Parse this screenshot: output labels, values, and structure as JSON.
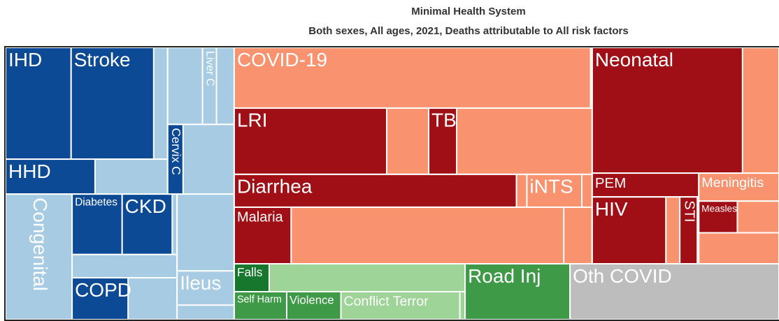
{
  "chart_data": {
    "type": "treemap",
    "title": "Minimal Health System",
    "subtitle": "Both sexes, All ages, 2021, Deaths attributable to All risk factors",
    "root": {
      "value": 4313,
      "color": "#ffffff",
      "children": [
        {
          "value": 1275,
          "color": "#a6cbe3",
          "children": [
            {
              "value": 687,
              "color": "#a6cbe3",
              "children": [
                {
                  "value": 487,
                  "color": "#a6cbe3",
                  "children": [
                    {
                      "value": 371,
                      "color": "#a6cbe3",
                      "children": [
                        {
                          "name": "IHD",
                          "value": 150,
                          "color": "#0d4a96"
                        },
                        {
                          "name": "Stroke",
                          "value": 189,
                          "color": "#0d4a96"
                        }
                      ]
                    },
                    {
                      "value": 116,
                      "color": "#a6cbe3",
                      "children": [
                        {
                          "name": "HHD",
                          "value": 64,
                          "color": "#0d4a96"
                        }
                      ]
                    }
                  ]
                },
                {
                  "value": 200,
                  "color": "#a6cbe3",
                  "children": [
                    {
                      "value": 105,
                      "color": "#a6cbe3",
                      "children": [
                        {
                          "value": 55,
                          "color": "#a6cbe3"
                        },
                        {
                          "name": "Liver C",
                          "value": 22,
                          "color": "#a6cbe3"
                        }
                      ]
                    },
                    {
                      "value": 95,
                      "color": "#a6cbe3",
                      "children": [
                        {
                          "name": "Cervix C",
                          "value": 22,
                          "color": "#0d4a96"
                        }
                      ]
                    }
                  ]
                }
              ]
            },
            {
              "value": 588,
              "color": "#a6cbe3",
              "children": [
                {
                  "name": "Congenital",
                  "value": 171,
                  "color": "#a6cbe3"
                },
                {
                  "value": 270,
                  "color": "#a6cbe3",
                  "children": [
                    {
                      "value": 130,
                      "color": "#a6cbe3",
                      "children": [
                        {
                          "name": "Diabetes",
                          "value": 62,
                          "color": "#0d4a96"
                        },
                        {
                          "name": "CKD",
                          "value": 62,
                          "color": "#0d4a96"
                        }
                      ]
                    },
                    {
                      "value": 50,
                      "color": "#a6cbe3"
                    },
                    {
                      "value": 90,
                      "color": "#a6cbe3",
                      "children": [
                        {
                          "name": "COPD",
                          "value": 48,
                          "color": "#0d4a96"
                        }
                      ]
                    }
                  ]
                },
                {
                  "value": 147,
                  "color": "#a6cbe3",
                  "children": [
                    {
                      "value": 90,
                      "color": "#a6cbe3"
                    },
                    {
                      "name": "Ileus",
                      "value": 40,
                      "color": "#a6cbe3"
                    }
                  ]
                }
              ]
            }
          ]
        },
        {
          "value": 3038,
          "color": "#ffffff",
          "children": [
            {
              "value": 2415,
              "color": "#f8926f",
              "children": [
                {
                  "value": 1587,
                  "color": "#f8926f",
                  "children": [
                    {
                      "value": 445,
                      "color": "#f8926f",
                      "children": [
                        {
                          "name": "COVID-19",
                          "value": 443,
                          "color": "#f8926f"
                        }
                      ]
                    },
                    {
                      "value": 486,
                      "color": "#f8926f",
                      "children": [
                        {
                          "name": "LRI",
                          "value": 207,
                          "color": "#a10f16"
                        },
                        {
                          "value": 57,
                          "color": "#f8926f"
                        },
                        {
                          "name": "TB",
                          "value": 38,
                          "color": "#a10f16"
                        }
                      ]
                    },
                    {
                      "value": 241,
                      "color": "#f8926f",
                      "children": [
                        {
                          "name": "Diarrhea",
                          "value": 190,
                          "color": "#a10f16"
                        },
                        {
                          "value": 7,
                          "color": "#f8926f"
                        },
                        {
                          "name": "iNTS",
                          "value": 37,
                          "color": "#f8926f"
                        }
                      ]
                    },
                    {
                      "value": 415,
                      "color": "#f8926f",
                      "children": [
                        {
                          "name": "Malaria",
                          "value": 66,
                          "color": "#a10f16"
                        },
                        {
                          "value": 316,
                          "color": "#f8926f"
                        }
                      ]
                    }
                  ]
                },
                {
                  "value": 828,
                  "color": "#f8926f",
                  "children": [
                    {
                      "value": 481,
                      "color": "#f8926f",
                      "children": [
                        {
                          "name": "Neonatal",
                          "value": 387,
                          "color": "#a10f16"
                        }
                      ]
                    },
                    {
                      "value": 347,
                      "color": "#f8926f",
                      "children": [
                        {
                          "value": 198,
                          "color": "#f8926f",
                          "children": [
                            {
                              "name": "PEM",
                              "value": 52,
                              "color": "#a10f16"
                            },
                            {
                              "value": 146,
                              "color": "#f8926f",
                              "children": [
                                {
                                  "name": "HIV",
                                  "value": 101,
                                  "color": "#a10f16"
                                },
                                {
                                  "value": 19,
                                  "color": "#f8926f"
                                },
                                {
                                  "name": "STI",
                                  "value": 24,
                                  "color": "#a10f16"
                                }
                              ]
                            }
                          ]
                        },
                        {
                          "value": 149,
                          "color": "#f8926f",
                          "children": [
                            {
                              "name": "Meningitis",
                              "value": 46,
                              "color": "#f8926f"
                            },
                            {
                              "value": 52,
                              "color": "#f8926f",
                              "children": [
                                {
                                  "name": "Measles",
                                  "value": 25,
                                  "color": "#a10f16"
                                }
                              ]
                            }
                          ]
                        }
                      ]
                    }
                  ]
                }
              ]
            },
            {
              "value": 623,
              "color": "#bdbdbd",
              "children": [
                {
                  "value": 264,
                  "color": "#9ed497",
                  "children": [
                    {
                      "value": 132,
                      "color": "#9ed497",
                      "children": [
                        {
                          "name": "Falls",
                          "value": 20,
                          "color": "#17772c"
                        }
                      ]
                    },
                    {
                      "value": 132,
                      "color": "#9ed497",
                      "children": [
                        {
                          "name": "Self Harm",
                          "value": 30,
                          "color": "#3f9a48"
                        },
                        {
                          "name": "Violence",
                          "value": 31,
                          "color": "#3f9a48"
                        },
                        {
                          "name": "Conflict Terror",
                          "value": 68,
                          "color": "#9ed497"
                        }
                      ]
                    }
                  ]
                },
                {
                  "name": "Road Inj",
                  "value": 120,
                  "color": "#3f9a48"
                },
                {
                  "name": "Oth COVID",
                  "value": 239,
                  "color": "#bdbdbd"
                }
              ]
            }
          ]
        }
      ]
    }
  }
}
